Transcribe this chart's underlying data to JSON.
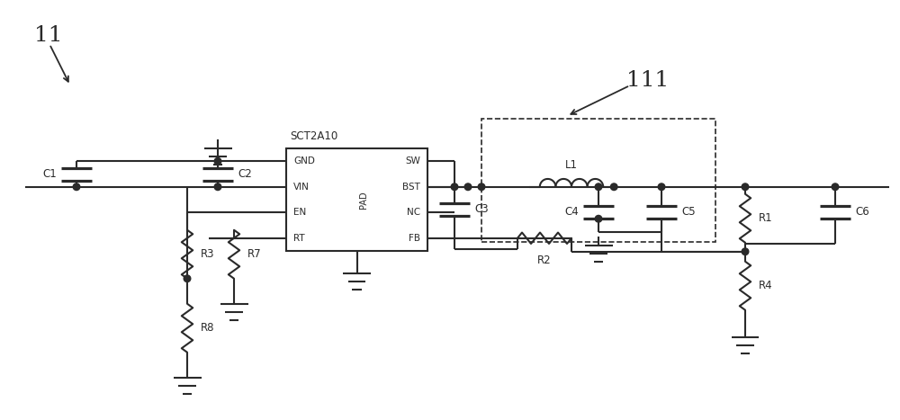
{
  "bg_color": "#ffffff",
  "lc": "#2a2a2a",
  "lw": 1.5,
  "fig_w": 10.0,
  "fig_h": 4.67,
  "ic_label": "SCT2A10",
  "ic_pins_left": [
    "GND",
    "VIN",
    "EN",
    "RT"
  ],
  "ic_pins_right": [
    "SW",
    "BST",
    "NC",
    "FB"
  ],
  "ic_pad": "PAD",
  "label_11": "11",
  "label_111": "111"
}
